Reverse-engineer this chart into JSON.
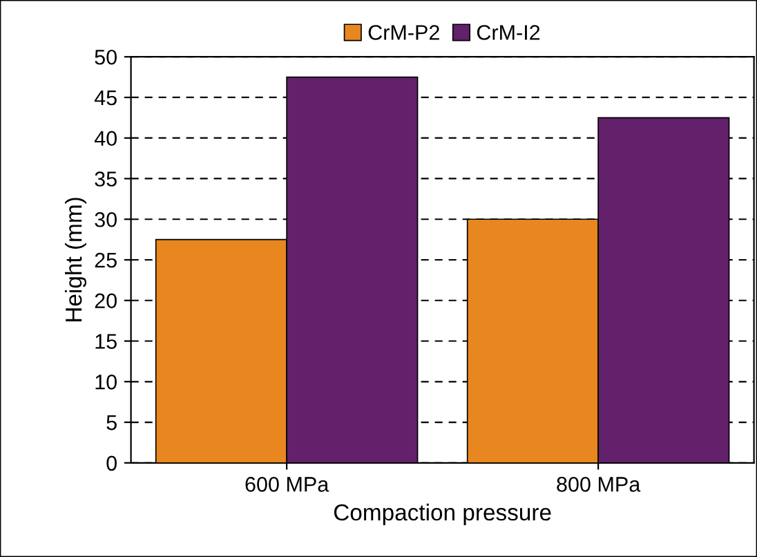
{
  "chart_data": {
    "type": "bar",
    "xlabel": "Compaction pressure",
    "ylabel": "Height (mm)",
    "categories": [
      "600 MPa",
      "800 MPa"
    ],
    "series": [
      {
        "name": "CrM-P2",
        "color": "#e8861f",
        "values": [
          27.5,
          30
        ]
      },
      {
        "name": "CrM-I2",
        "color": "#63206b",
        "values": [
          47.5,
          42.5
        ]
      }
    ],
    "ylim": [
      0,
      50
    ],
    "yticks": [
      0,
      5,
      10,
      15,
      20,
      25,
      30,
      35,
      40,
      45,
      50
    ],
    "grid": "y",
    "legend": "top"
  }
}
